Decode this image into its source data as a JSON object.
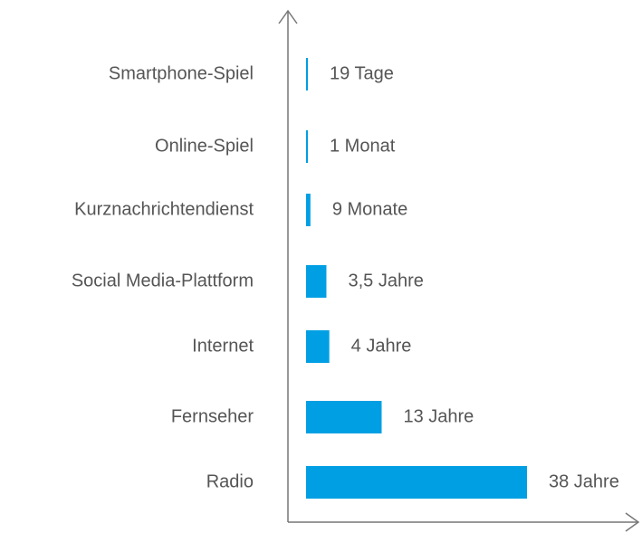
{
  "chart_data": {
    "type": "barh",
    "categories": [
      "Smartphone-Spiel",
      "Online-Spiel",
      "Kurznachrichtendienst",
      "Social Media-Plattform",
      "Internet",
      "Fernseher",
      "Radio"
    ],
    "values": [
      0.052,
      0.083,
      0.75,
      3.5,
      4,
      13,
      38
    ],
    "value_labels": [
      "19 Tage",
      "1 Monat",
      "9 Monate",
      "3,5 Jahre",
      "4 Jahre",
      "13 Jahre",
      "38 Jahre"
    ],
    "color": "#009fe3"
  }
}
